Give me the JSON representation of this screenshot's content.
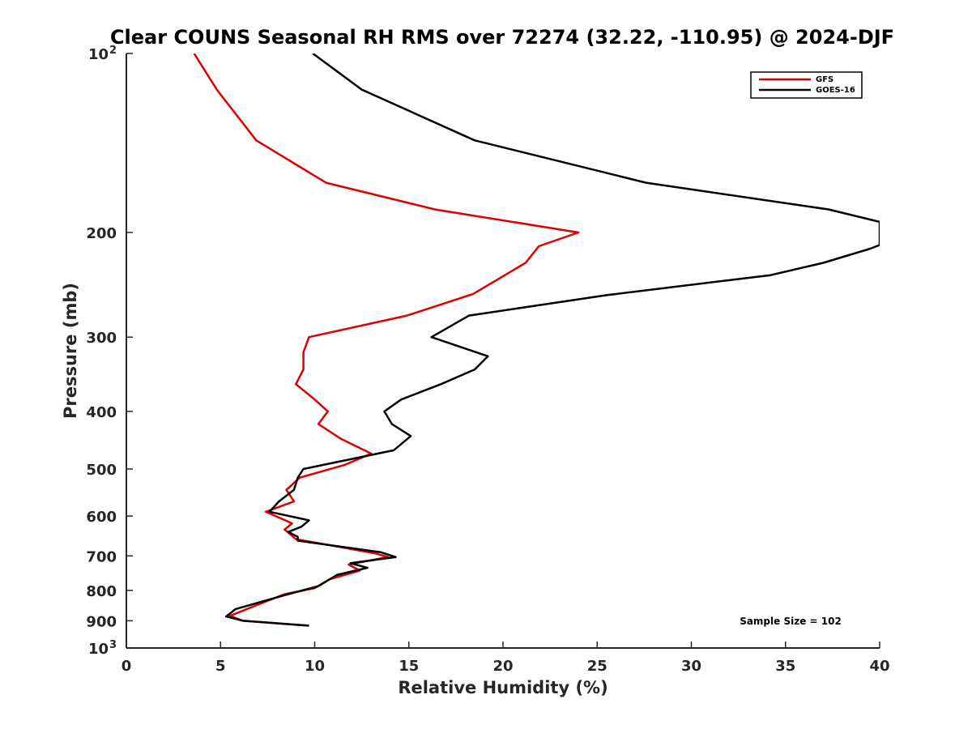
{
  "chart_data": {
    "type": "line",
    "title": "Clear COUNS Seasonal RH RMS over 72274 (32.22, -110.95) @ 2024-DJF",
    "xlabel": "Relative Humidity (%)",
    "ylabel": "Pressure (mb)",
    "xlim": [
      0,
      40
    ],
    "ylim": [
      100,
      1000
    ],
    "yscale": "log",
    "y_reversed": true,
    "grid": false,
    "legend_position": "top-right",
    "x_ticks": [
      0,
      5,
      10,
      15,
      20,
      25,
      30,
      35,
      40
    ],
    "y_ticks": [
      {
        "value": 100,
        "label": "10",
        "sup": "2"
      },
      {
        "value": 200,
        "label": "200",
        "sup": ""
      },
      {
        "value": 300,
        "label": "300",
        "sup": ""
      },
      {
        "value": 400,
        "label": "400",
        "sup": ""
      },
      {
        "value": 500,
        "label": "500",
        "sup": ""
      },
      {
        "value": 600,
        "label": "600",
        "sup": ""
      },
      {
        "value": 700,
        "label": "700",
        "sup": ""
      },
      {
        "value": 800,
        "label": "800",
        "sup": ""
      },
      {
        "value": 900,
        "label": "900",
        "sup": ""
      },
      {
        "value": 1000,
        "label": "10",
        "sup": "3"
      }
    ],
    "series": [
      {
        "name": "GFS",
        "color": "#dd0000",
        "points": [
          [
            3.6,
            100
          ],
          [
            4.8,
            115
          ],
          [
            6.9,
            140
          ],
          [
            10.6,
            165
          ],
          [
            16.4,
            183
          ],
          [
            24.0,
            200
          ],
          [
            21.9,
            211
          ],
          [
            21.2,
            225
          ],
          [
            18.4,
            254
          ],
          [
            14.9,
            276
          ],
          [
            9.7,
            300
          ],
          [
            9.4,
            318
          ],
          [
            9.4,
            340
          ],
          [
            9.0,
            360
          ],
          [
            10.0,
            382
          ],
          [
            10.7,
            400
          ],
          [
            10.2,
            420
          ],
          [
            11.4,
            445
          ],
          [
            13.0,
            471
          ],
          [
            11.6,
            492
          ],
          [
            9.2,
            517
          ],
          [
            8.5,
            542
          ],
          [
            8.9,
            567
          ],
          [
            7.4,
            590
          ],
          [
            8.8,
            617
          ],
          [
            8.4,
            632
          ],
          [
            9.0,
            656
          ],
          [
            13.2,
            693
          ],
          [
            13.9,
            703
          ],
          [
            11.8,
            724
          ],
          [
            12.4,
            741
          ],
          [
            10.8,
            766
          ],
          [
            10.0,
            793
          ],
          [
            8.4,
            812
          ],
          [
            7.0,
            845
          ],
          [
            5.5,
            883
          ],
          [
            6.2,
            900
          ],
          [
            9.6,
            917
          ]
        ]
      },
      {
        "name": "GOES-16",
        "color": "#000000",
        "points": [
          [
            9.9,
            100
          ],
          [
            12.5,
            115
          ],
          [
            18.5,
            140
          ],
          [
            27.6,
            165
          ],
          [
            37.3,
            183
          ],
          [
            40.0,
            192
          ],
          [
            40.0,
            210
          ],
          [
            39.5,
            213
          ],
          [
            37.0,
            225
          ],
          [
            34.2,
            236
          ],
          [
            25.5,
            255
          ],
          [
            18.2,
            276
          ],
          [
            16.2,
            300
          ],
          [
            19.2,
            323
          ],
          [
            18.5,
            340
          ],
          [
            16.7,
            360
          ],
          [
            14.6,
            382
          ],
          [
            13.7,
            400
          ],
          [
            14.1,
            420
          ],
          [
            15.1,
            440
          ],
          [
            14.2,
            465
          ],
          [
            9.4,
            500
          ],
          [
            9.1,
            517
          ],
          [
            8.9,
            542
          ],
          [
            8.1,
            567
          ],
          [
            7.6,
            590
          ],
          [
            9.7,
            610
          ],
          [
            9.3,
            625
          ],
          [
            8.6,
            638
          ],
          [
            9.1,
            650
          ],
          [
            9.1,
            660
          ],
          [
            13.5,
            690
          ],
          [
            14.3,
            703
          ],
          [
            11.9,
            720
          ],
          [
            12.8,
            733
          ],
          [
            11.2,
            753
          ],
          [
            10.2,
            787
          ],
          [
            8.6,
            812
          ],
          [
            7.3,
            834
          ],
          [
            5.8,
            860
          ],
          [
            5.3,
            885
          ],
          [
            6.2,
            900
          ],
          [
            9.7,
            917
          ]
        ]
      }
    ],
    "annotations": [
      "Sample Size = 102"
    ]
  }
}
